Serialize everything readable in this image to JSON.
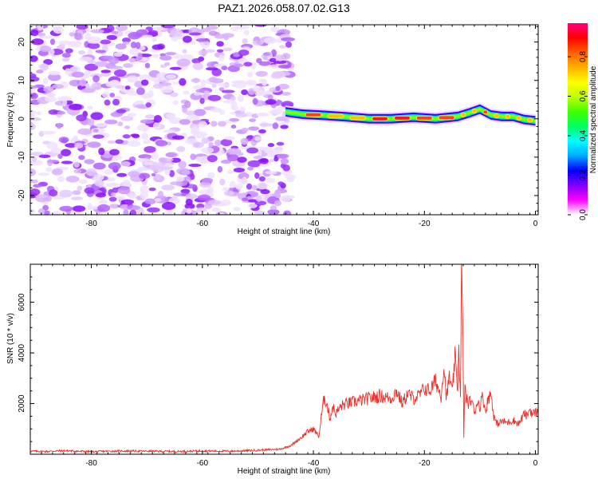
{
  "figure_title": "PAZ1.2026.058.07.02.G13",
  "chart_data": [
    {
      "type": "heatmap",
      "xlabel": "Height of straight line (km)",
      "ylabel": "Frequency (Hz)",
      "xlim": [
        -91,
        0.5
      ],
      "ylim": [
        -25,
        24.5
      ],
      "xticks": [
        -80,
        -60,
        -40,
        -20,
        0
      ],
      "xtick_labels": [
        "-80",
        "-60",
        "-40",
        "-20",
        "0"
      ],
      "yticks": [
        -20,
        -10,
        0,
        10,
        20
      ],
      "ytick_labels": [
        "-20",
        "-10",
        "0",
        "10",
        "20"
      ],
      "noise_region_km": [
        -91,
        -44
      ],
      "ridge": {
        "x": [
          -45,
          -42,
          -38,
          -34,
          -30,
          -26,
          -22,
          -18,
          -14,
          -12,
          -10,
          -8,
          -6,
          -4,
          -2,
          0
        ],
        "freq": [
          1.8,
          1.2,
          0.9,
          0.5,
          0.0,
          0.0,
          0.4,
          0.0,
          0.6,
          1.5,
          2.5,
          1.0,
          0.6,
          0.6,
          -0.2,
          -0.5
        ],
        "amplitude": [
          0.5,
          0.85,
          0.7,
          0.7,
          0.95,
          0.95,
          0.85,
          0.85,
          0.6,
          0.7,
          0.85,
          0.75,
          0.75,
          0.7,
          0.7,
          0.6
        ]
      },
      "colorbar": {
        "label": "Normalized spectral amplitude",
        "range": [
          0,
          0.97
        ],
        "ticks": [
          0.0,
          0.2,
          0.4,
          0.6,
          0.8
        ],
        "tick_labels": [
          "0.0",
          "0.2",
          "0.4",
          "0.6",
          "0.8"
        ],
        "colormap": [
          "#ffffff",
          "#ff00ff",
          "#8000ff",
          "#0000ff",
          "#00aaff",
          "#00ffff",
          "#00ff60",
          "#40ff00",
          "#c0ff00",
          "#ffff00",
          "#ffb000",
          "#ff6000",
          "#ff0000",
          "#ff0080"
        ]
      }
    },
    {
      "type": "line",
      "xlabel": "Height of straight line (km)",
      "ylabel": "SNR (10 * v/v)",
      "xlim": [
        -91,
        0.5
      ],
      "ylim": [
        0,
        7500
      ],
      "xticks": [
        -80,
        -60,
        -40,
        -20,
        0
      ],
      "xtick_labels": [
        "-80",
        "-60",
        "-40",
        "-20",
        "0"
      ],
      "yticks": [
        2000,
        4000,
        6000
      ],
      "ytick_labels": [
        "2000",
        "4000",
        "6000"
      ],
      "line_color": "#e8302c",
      "series": [
        {
          "name": "SNR",
          "x": [
            -91,
            -88,
            -85,
            -80,
            -75,
            -70,
            -65,
            -60,
            -55,
            -50,
            -46,
            -44,
            -42,
            -41,
            -40,
            -39,
            -38.5,
            -38,
            -37.5,
            -37,
            -36.5,
            -36,
            -35,
            -34,
            -32,
            -30,
            -28,
            -26,
            -25,
            -24,
            -23,
            -22,
            -21,
            -20,
            -19,
            -18,
            -17.5,
            -17,
            -16.5,
            -16,
            -15.5,
            -15,
            -14.5,
            -14,
            -13.8,
            -13.5,
            -13.3,
            -13.1,
            -13,
            -12.9,
            -12.7,
            -12.5,
            -12,
            -11.5,
            -11,
            -10.5,
            -10,
            -9.5,
            -9,
            -8.5,
            -8,
            -7.5,
            -7,
            -6,
            -5,
            -4,
            -3,
            -2,
            -1.5,
            -1,
            -0.5,
            0,
            0.5
          ],
          "y": [
            120,
            110,
            140,
            100,
            130,
            120,
            110,
            130,
            120,
            160,
            200,
            350,
            700,
            900,
            1000,
            700,
            1600,
            2300,
            1900,
            1400,
            1900,
            1600,
            1900,
            2000,
            2100,
            2200,
            2300,
            2200,
            2500,
            2000,
            2400,
            2200,
            2300,
            2600,
            2500,
            2900,
            2600,
            2300,
            3500,
            2200,
            3100,
            2400,
            3800,
            2600,
            4400,
            2100,
            7400,
            5000,
            3500,
            600,
            2800,
            2200,
            2000,
            2200,
            1600,
            2100,
            1900,
            2300,
            1700,
            2200,
            2400,
            1500,
            1200,
            1300,
            1250,
            1350,
            1200,
            1600,
            1500,
            1800,
            1550,
            1700,
            1600
          ]
        }
      ]
    }
  ]
}
